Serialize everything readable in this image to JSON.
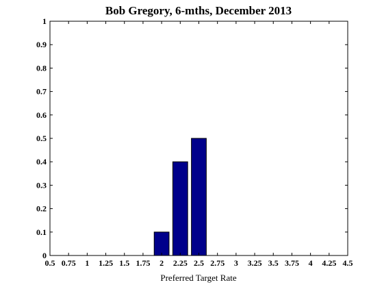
{
  "chart_data": {
    "type": "bar",
    "title": "Bob Gregory, 6-mths, December 2013",
    "xlabel": "Preferred Target Rate",
    "ylabel": "",
    "xlim": [
      0.5,
      4.5
    ],
    "ylim": [
      0,
      1
    ],
    "x_ticks": [
      "0.5",
      "0.75",
      "1",
      "1.25",
      "1.5",
      "1.75",
      "2",
      "2.25",
      "2.5",
      "2.75",
      "3",
      "3.25",
      "3.5",
      "3.75",
      "4",
      "4.25",
      "4.5"
    ],
    "y_ticks": [
      "0",
      "0.1",
      "0.2",
      "0.3",
      "0.4",
      "0.5",
      "0.6",
      "0.7",
      "0.8",
      "0.9",
      "1"
    ],
    "categories": [
      "2",
      "2.25",
      "2.5"
    ],
    "x": [
      2,
      2.25,
      2.5
    ],
    "values": [
      0.1,
      0.4,
      0.5
    ],
    "bar_width": 0.2,
    "grid": false,
    "bar_color": "#00008B",
    "bar_edge_color": "#000000"
  }
}
